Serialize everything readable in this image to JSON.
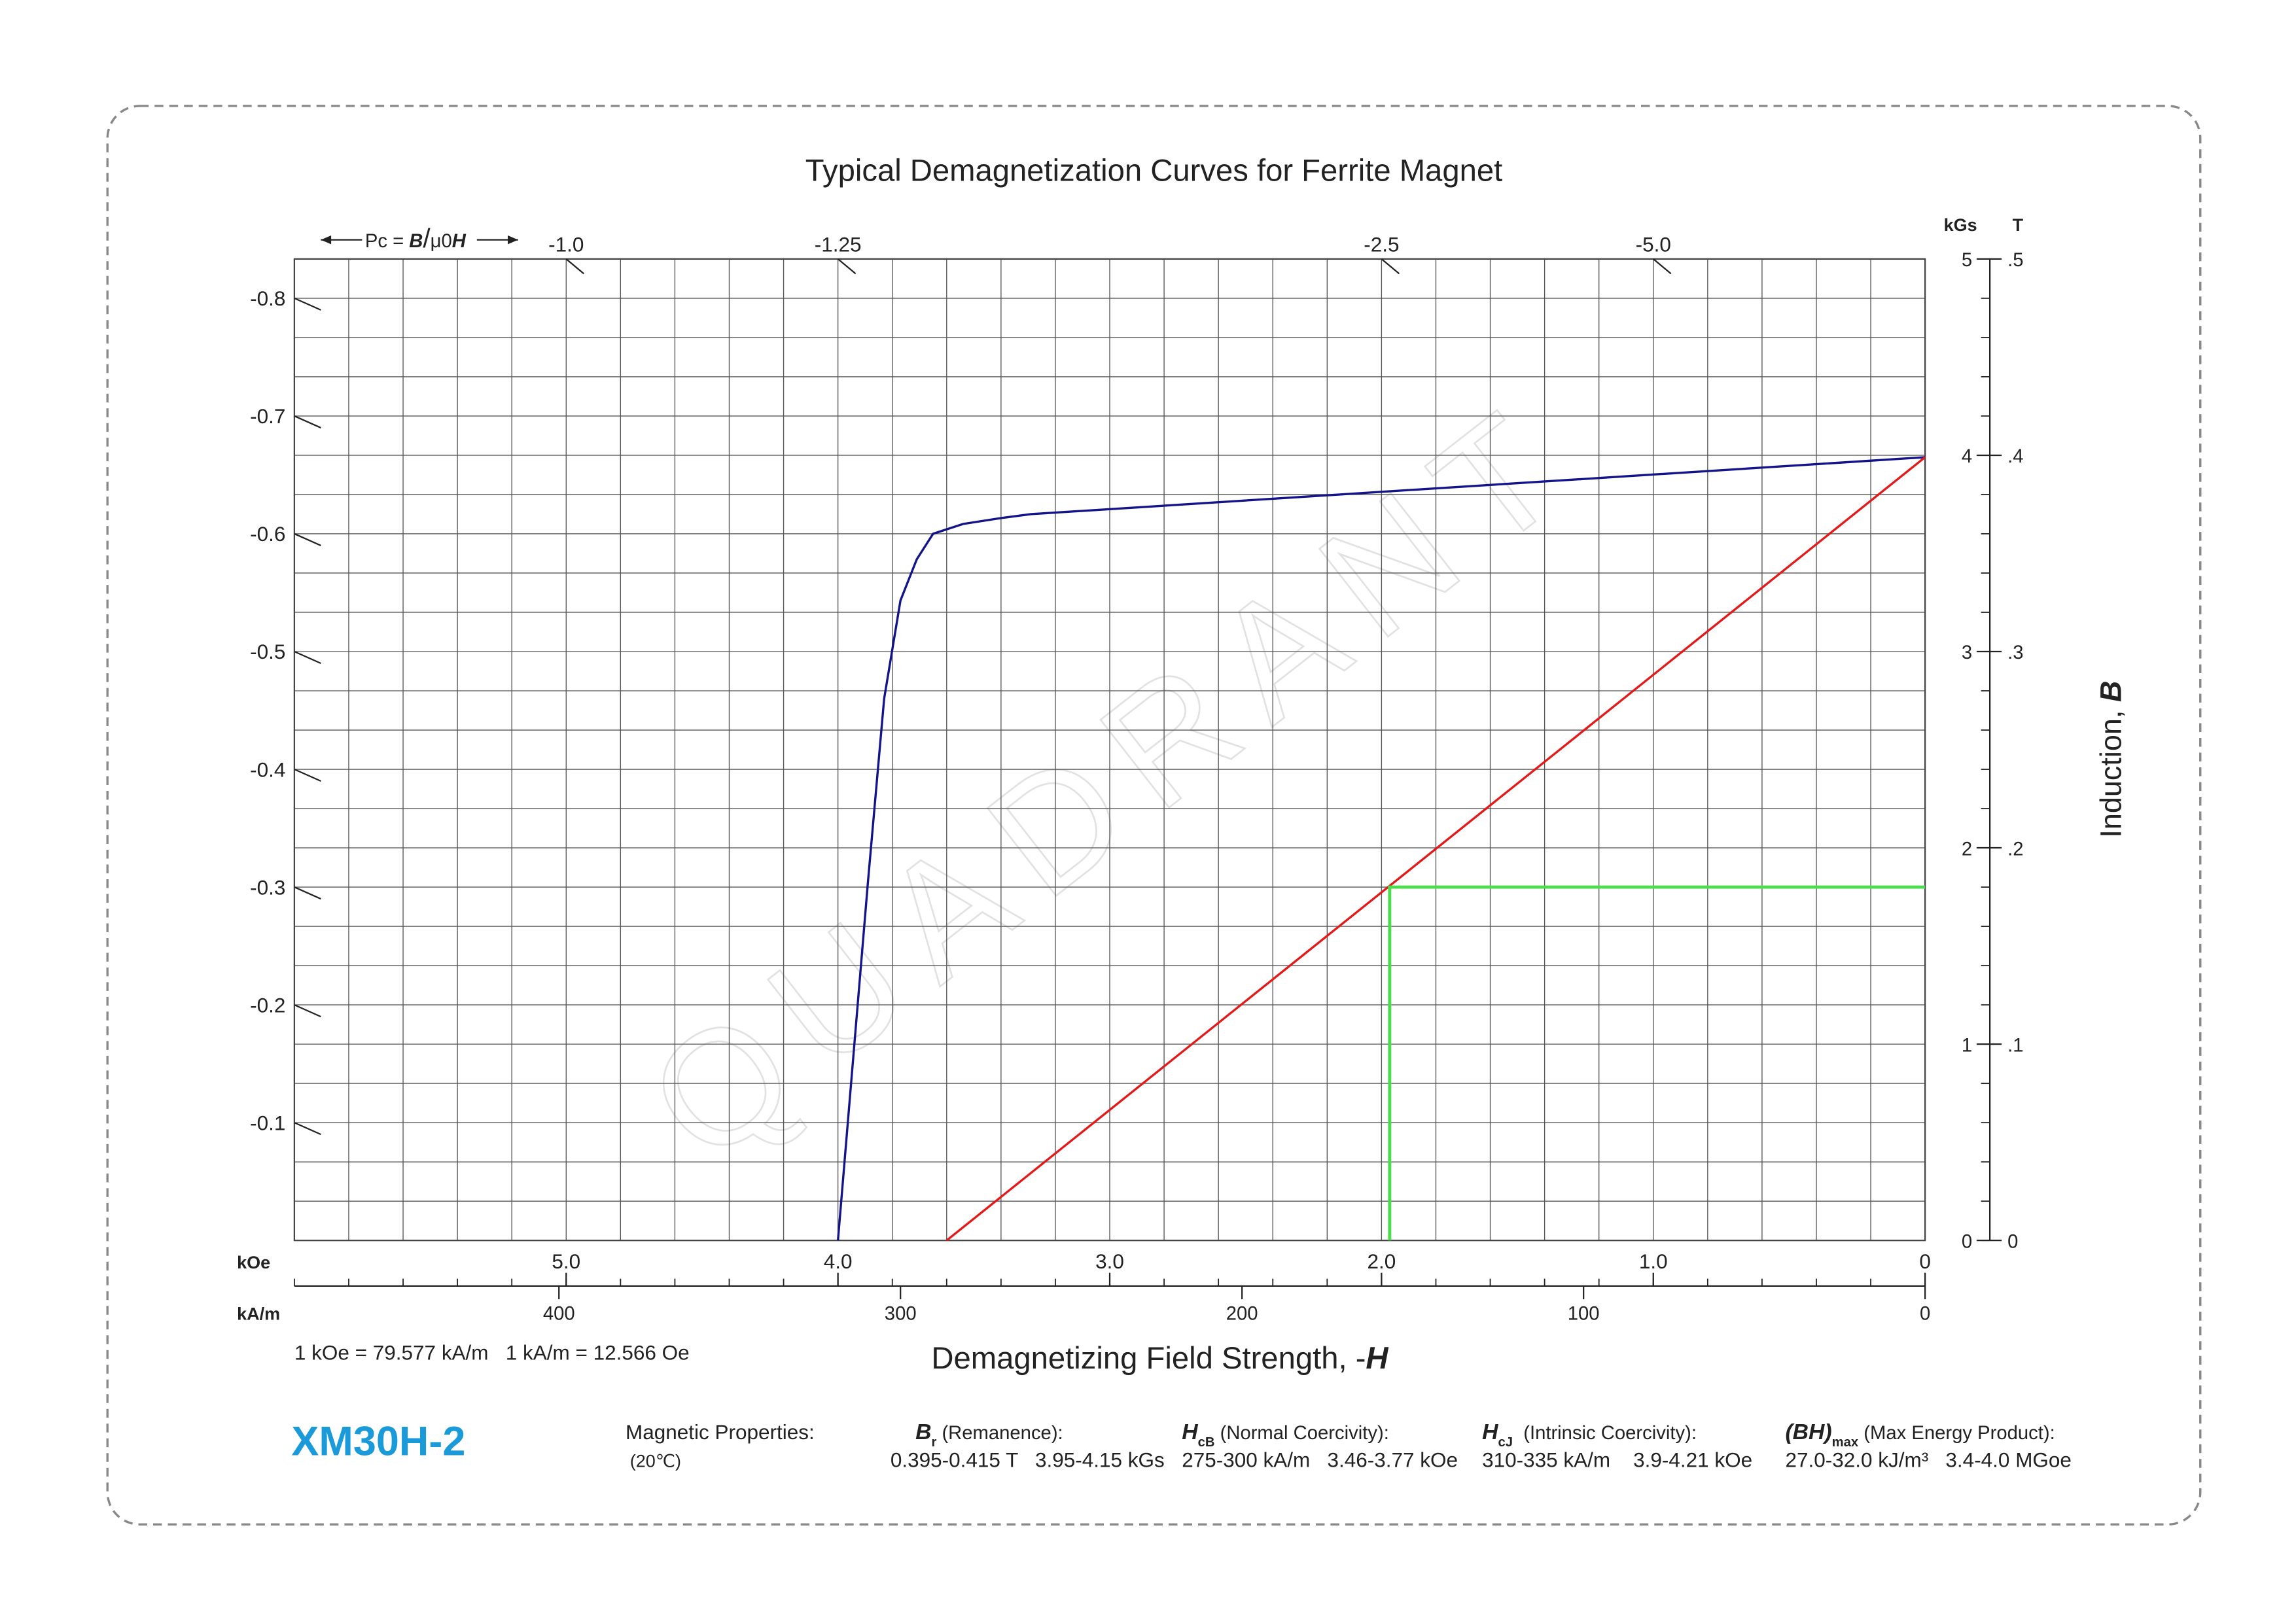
{
  "chart_data": {
    "type": "line",
    "title": "Typical Demagnetization Curves for Ferrite Magnet",
    "watermark": "QUADRANT",
    "pc_label": [
      "Pc = ",
      "B",
      "/",
      "μ0",
      "H"
    ],
    "pc_ticks": [
      {
        "value": -1,
        "label": "-1.0"
      },
      -1.25,
      -2.5,
      {
        "value": -5,
        "label": "-5.0"
      },
      -0.8,
      -0.7,
      -0.6,
      -0.5,
      -0.4,
      -0.3,
      -0.2,
      -0.1
    ],
    "x_unit": "kOe",
    "xlim": [
      6,
      0
    ],
    "xticks": [
      {
        "value": 5,
        "label": "5.0"
      },
      {
        "value": 4,
        "label": "4.0"
      },
      {
        "value": 3,
        "label": "3.0"
      },
      {
        "value": 2,
        "label": "2.0"
      },
      {
        "value": 1,
        "label": "1.0"
      },
      0
    ],
    "x2_unit": "kA/m",
    "x2lim": [
      477.462,
      0
    ],
    "x2ticks": [
      400,
      300,
      200,
      100,
      0
    ],
    "y_unit": "kGs",
    "ylim": [
      0,
      5
    ],
    "yticks": [
      0,
      1,
      2,
      3,
      4,
      5
    ],
    "y2_unit": "T",
    "y2lim": [
      0,
      0.5
    ],
    "y2ticks": [
      0,
      {
        "value": 0.1,
        "label": ".1"
      },
      {
        "value": 0.2,
        "label": ".2"
      },
      {
        "value": 0.3,
        "label": ".3"
      },
      {
        "value": 0.4,
        "label": ".4"
      },
      {
        "value": 0.5,
        "label": ".5"
      }
    ],
    "grid": true,
    "grid_step": {
      "x": 0.2,
      "y": 0.2
    },
    "xlabel": [
      "Demagnetizing Field Strength, -",
      "H"
    ],
    "ylabel": [
      "Induction, ",
      "B"
    ],
    "note": "1 kOe = 79.577 kA/m   1 kA/m = 12.566 Oe",
    "series": [
      {
        "color": "#14148a",
        "x": [
          0,
          3.29,
          3.4,
          3.54,
          3.65,
          3.71,
          3.77,
          3.83,
          3.89,
          4.0
        ],
        "values": [
          3.99,
          3.7,
          3.68,
          3.65,
          3.6,
          3.47,
          3.26,
          2.76,
          1.82,
          0
        ]
      },
      {
        "color": "#e31a1a",
        "x": [
          0,
          3.6
        ],
        "values": [
          3.99,
          0
        ]
      },
      {
        "color": "#4ddc4d",
        "x": [
          0,
          1.97,
          1.97
        ],
        "values": [
          1.8,
          1.8,
          0
        ]
      }
    ]
  },
  "product": "XM30H-2",
  "properties": {
    "heading": "Magnetic Properties:",
    "condition": "(20℃)",
    "items": [
      {
        "symbol": "B",
        "sub": "r",
        "desc": " (Remanence):",
        "value": "0.395-0.415 T   3.95-4.15 kGs"
      },
      {
        "symbol": "H",
        "sub": "cB",
        "desc": " (Normal Coercivity):",
        "value": "275-300 kA/m   3.46-3.77 kOe"
      },
      {
        "symbol": "H",
        "sub": "cJ",
        "desc": "  (Intrinsic Coercivity):",
        "value": "310-335 kA/m    3.9-4.21 kOe"
      },
      {
        "symbol": "(BH)",
        "sub": "max",
        "desc": " (Max Energy Product):",
        "value": "27.0-32.0 kJ/m³   3.4-4.0 MGoe"
      }
    ]
  }
}
